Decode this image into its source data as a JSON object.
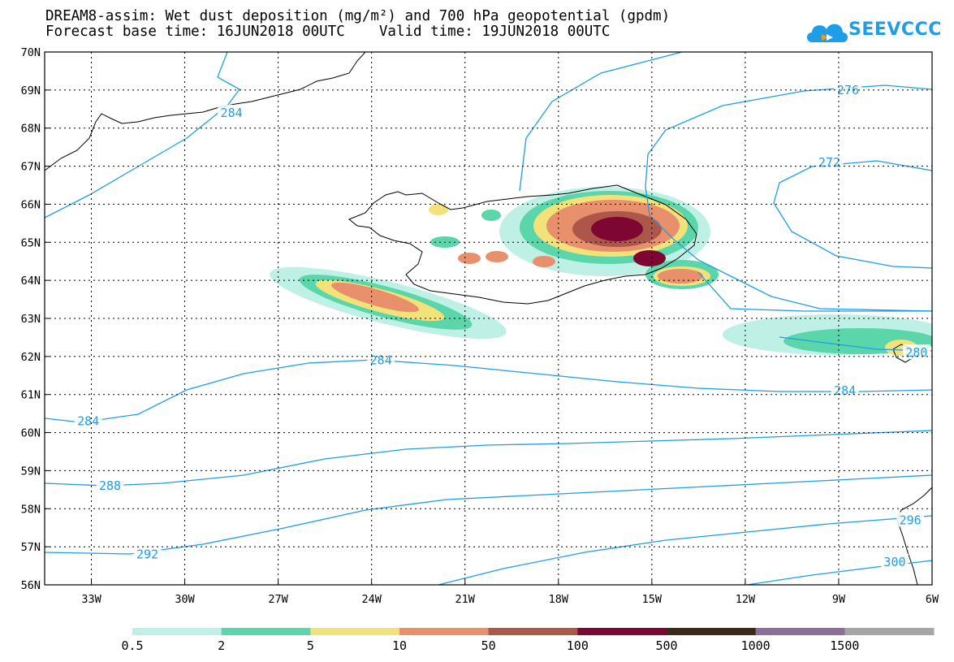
{
  "title_line1": "DREAM8-assim: Wet dust deposition (mg/m²) and 700 hPa geopotential (gpdm)",
  "title_line2": "Forecast base time: 16JUN2018 00UTC    Valid time: 19JUN2018 00UTC",
  "logo_text": "SEEVCCC",
  "map": {
    "lon_range": [
      -34.5,
      -6
    ],
    "lat_range": [
      56,
      70
    ],
    "lat_ticks": [
      "70N",
      "69N",
      "68N",
      "67N",
      "66N",
      "65N",
      "64N",
      "63N",
      "62N",
      "61N",
      "60N",
      "59N",
      "58N",
      "57N",
      "56N"
    ],
    "lon_ticks": [
      "33W",
      "30W",
      "27W",
      "24W",
      "21W",
      "18W",
      "15W",
      "12W",
      "9W",
      "6W"
    ],
    "contour_color": "#1e9ee6",
    "contour_labels": [
      {
        "text": "284",
        "lon": -28.5,
        "lat": 68.4
      },
      {
        "text": "276",
        "lon": -8.7,
        "lat": 69.0
      },
      {
        "text": "272",
        "lon": -9.3,
        "lat": 67.1
      },
      {
        "text": "284",
        "lon": -23.7,
        "lat": 61.9
      },
      {
        "text": "284",
        "lon": -33.1,
        "lat": 60.3
      },
      {
        "text": "284",
        "lon": -8.8,
        "lat": 61.1
      },
      {
        "text": "288",
        "lon": -32.4,
        "lat": 58.6
      },
      {
        "text": "292",
        "lon": -31.2,
        "lat": 56.8
      },
      {
        "text": "296",
        "lon": -6.7,
        "lat": 57.7
      },
      {
        "text": "300",
        "lon": -7.2,
        "lat": 56.6
      },
      {
        "text": "280",
        "lon": -6.5,
        "lat": 62.1
      }
    ]
  },
  "legend": {
    "colors": [
      "#bff0e6",
      "#5ad6aa",
      "#f3e27a",
      "#e8906b",
      "#ac574a",
      "#7e0632",
      "#3d2a14",
      "#8c6d9c",
      "#a6a6a6"
    ],
    "labels": [
      "0.5",
      "2",
      "5",
      "10",
      "50",
      "100",
      "500",
      "1000",
      "1500"
    ]
  }
}
